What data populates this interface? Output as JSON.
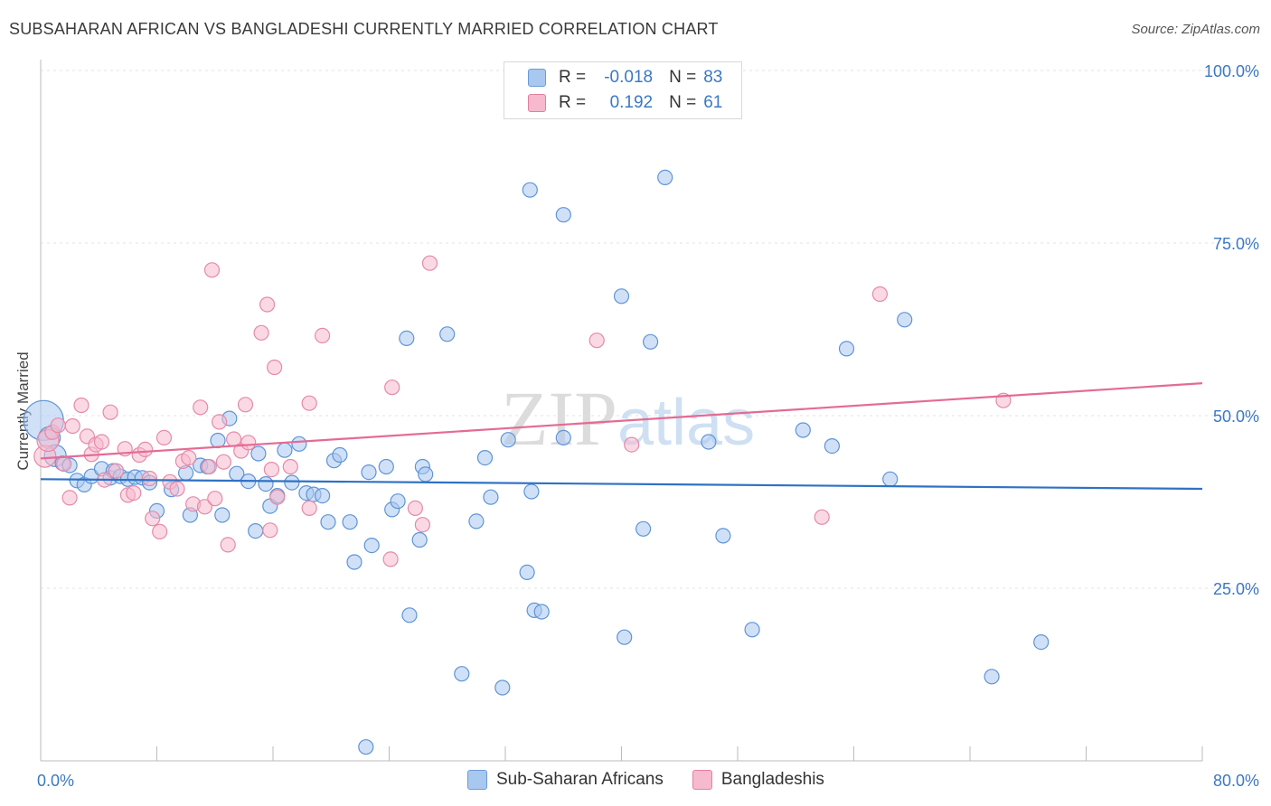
{
  "title": "SUBSAHARAN AFRICAN VS BANGLADESHI CURRENTLY MARRIED CORRELATION CHART",
  "source": "Source: ZipAtlas.com",
  "watermark": "ZIPatlas",
  "legend_stats": [
    {
      "r_label": "R =",
      "r_value": "-0.018",
      "n_label": "N =",
      "n_value": "83",
      "color": "#a9c8f0",
      "border": "#6a9bd8"
    },
    {
      "r_label": "R =",
      "r_value": "0.192",
      "n_label": "N =",
      "n_value": "61",
      "color": "#f7b9cd",
      "border": "#e27fa0"
    }
  ],
  "colors": {
    "blue_fill": "#a9c8f0",
    "blue_stroke": "#5f94d6",
    "blue_line": "#2f72c4",
    "pink_fill": "#f7b9cd",
    "pink_stroke": "#e58aa8",
    "pink_line": "#e46b94",
    "axis_text": "#3b78c4",
    "grid": "#e3e3e3"
  },
  "chart_data": {
    "type": "scatter",
    "title": "SUBSAHARAN AFRICAN VS BANGLADESHI CURRENTLY MARRIED CORRELATION CHART",
    "xlabel": "",
    "ylabel": "Currently Married",
    "xlim": [
      0,
      80
    ],
    "ylim": [
      0,
      102
    ],
    "x_tick_labels": [
      "0.0%",
      "80.0%"
    ],
    "y_ticks": [
      25,
      50,
      75,
      100
    ],
    "y_tick_labels": [
      "25.0%",
      "50.0%",
      "75.0%",
      "100.0%"
    ],
    "grid": "horizontal dashed",
    "legend_position": "bottom-center",
    "series": [
      {
        "name": "Sub-Saharan Africans",
        "trend": {
          "x": [
            0,
            80
          ],
          "y": [
            40.8,
            39.4
          ]
        },
        "points": [
          [
            0.2,
            49.3
          ],
          [
            0.6,
            46.8
          ],
          [
            1.0,
            44.2
          ],
          [
            1.5,
            43.1
          ],
          [
            2.0,
            42.8
          ],
          [
            2.5,
            40.6
          ],
          [
            3.0,
            40.0
          ],
          [
            3.5,
            41.2
          ],
          [
            4.2,
            42.3
          ],
          [
            4.8,
            41.0
          ],
          [
            5.0,
            42.0
          ],
          [
            5.5,
            41.2
          ],
          [
            6.0,
            40.8
          ],
          [
            6.5,
            41.1
          ],
          [
            7.0,
            41.0
          ],
          [
            7.5,
            40.3
          ],
          [
            8.0,
            36.2
          ],
          [
            9.0,
            39.3
          ],
          [
            10.0,
            41.7
          ],
          [
            10.3,
            35.6
          ],
          [
            11.0,
            42.8
          ],
          [
            11.5,
            42.6
          ],
          [
            12.2,
            46.4
          ],
          [
            12.5,
            35.6
          ],
          [
            13.0,
            49.6
          ],
          [
            13.5,
            41.6
          ],
          [
            14.3,
            40.5
          ],
          [
            14.8,
            33.3
          ],
          [
            15.0,
            44.5
          ],
          [
            15.5,
            40.1
          ],
          [
            15.8,
            36.9
          ],
          [
            16.3,
            38.4
          ],
          [
            16.8,
            45.0
          ],
          [
            17.3,
            40.3
          ],
          [
            17.8,
            45.9
          ],
          [
            18.3,
            38.8
          ],
          [
            18.8,
            38.6
          ],
          [
            19.4,
            38.4
          ],
          [
            19.8,
            34.6
          ],
          [
            20.2,
            43.5
          ],
          [
            20.6,
            44.3
          ],
          [
            21.3,
            34.6
          ],
          [
            21.6,
            28.8
          ],
          [
            22.6,
            41.8
          ],
          [
            22.8,
            31.2
          ],
          [
            22.4,
            2.0
          ],
          [
            23.8,
            42.6
          ],
          [
            24.2,
            36.4
          ],
          [
            24.6,
            37.6
          ],
          [
            25.2,
            61.2
          ],
          [
            25.4,
            21.1
          ],
          [
            26.1,
            32.0
          ],
          [
            26.3,
            42.6
          ],
          [
            26.5,
            41.5
          ],
          [
            28.0,
            61.8
          ],
          [
            29.0,
            12.6
          ],
          [
            30.0,
            34.7
          ],
          [
            30.6,
            43.9
          ],
          [
            31.0,
            38.2
          ],
          [
            31.8,
            10.6
          ],
          [
            32.2,
            46.5
          ],
          [
            33.5,
            27.3
          ],
          [
            33.8,
            39.0
          ],
          [
            33.7,
            82.7
          ],
          [
            34.0,
            21.8
          ],
          [
            34.5,
            21.6
          ],
          [
            36.0,
            79.1
          ],
          [
            36.0,
            46.8
          ],
          [
            40.0,
            67.3
          ],
          [
            40.2,
            17.9
          ],
          [
            41.5,
            33.6
          ],
          [
            42.0,
            60.7
          ],
          [
            43.0,
            84.5
          ],
          [
            46.0,
            46.2
          ],
          [
            47.0,
            32.6
          ],
          [
            49.0,
            19.0
          ],
          [
            52.5,
            47.9
          ],
          [
            54.5,
            45.6
          ],
          [
            55.5,
            59.7
          ],
          [
            58.5,
            40.8
          ],
          [
            59.5,
            63.9
          ],
          [
            65.5,
            12.2
          ],
          [
            68.9,
            17.2
          ]
        ]
      },
      {
        "name": "Bangladeshis",
        "trend": {
          "x": [
            0,
            80
          ],
          "y": [
            43.8,
            54.7
          ]
        },
        "points": [
          [
            0.3,
            44.1
          ],
          [
            0.5,
            46.4
          ],
          [
            0.8,
            47.6
          ],
          [
            1.2,
            48.6
          ],
          [
            1.6,
            43.0
          ],
          [
            2.0,
            38.1
          ],
          [
            2.2,
            48.5
          ],
          [
            2.8,
            51.5
          ],
          [
            3.2,
            47.0
          ],
          [
            3.5,
            44.4
          ],
          [
            3.8,
            45.8
          ],
          [
            4.2,
            46.2
          ],
          [
            4.4,
            40.7
          ],
          [
            4.8,
            50.5
          ],
          [
            5.2,
            42.0
          ],
          [
            5.8,
            45.2
          ],
          [
            6.0,
            38.5
          ],
          [
            6.4,
            38.8
          ],
          [
            6.8,
            44.3
          ],
          [
            7.2,
            45.1
          ],
          [
            7.5,
            40.9
          ],
          [
            7.7,
            35.1
          ],
          [
            8.2,
            33.2
          ],
          [
            8.5,
            46.8
          ],
          [
            8.9,
            40.4
          ],
          [
            9.4,
            39.4
          ],
          [
            9.8,
            43.4
          ],
          [
            10.2,
            43.9
          ],
          [
            10.5,
            37.2
          ],
          [
            11.0,
            51.2
          ],
          [
            11.3,
            36.8
          ],
          [
            11.6,
            42.6
          ],
          [
            11.8,
            71.1
          ],
          [
            12.0,
            38.0
          ],
          [
            12.3,
            49.1
          ],
          [
            12.6,
            43.3
          ],
          [
            12.9,
            31.3
          ],
          [
            13.3,
            46.6
          ],
          [
            13.8,
            44.9
          ],
          [
            14.1,
            51.6
          ],
          [
            14.3,
            46.1
          ],
          [
            15.2,
            62.0
          ],
          [
            15.6,
            66.1
          ],
          [
            15.8,
            33.4
          ],
          [
            15.9,
            42.2
          ],
          [
            16.1,
            57.0
          ],
          [
            16.3,
            38.2
          ],
          [
            17.2,
            42.6
          ],
          [
            18.5,
            51.8
          ],
          [
            18.5,
            36.6
          ],
          [
            19.4,
            61.6
          ],
          [
            24.1,
            29.2
          ],
          [
            24.2,
            54.1
          ],
          [
            25.8,
            36.6
          ],
          [
            26.3,
            34.2
          ],
          [
            26.8,
            72.1
          ],
          [
            38.3,
            60.9
          ],
          [
            40.7,
            45.8
          ],
          [
            53.8,
            35.3
          ],
          [
            57.8,
            67.6
          ],
          [
            66.3,
            52.2
          ]
        ]
      }
    ]
  }
}
